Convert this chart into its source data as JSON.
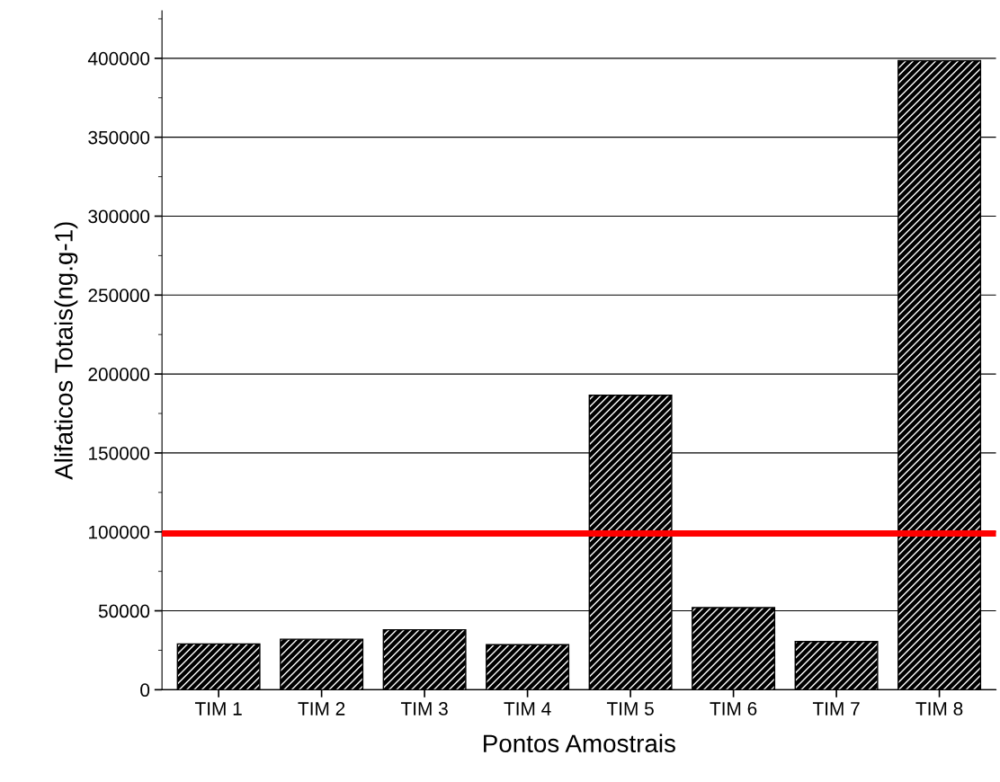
{
  "chart_data": {
    "type": "bar",
    "xlabel": "Pontos Amostrais",
    "ylabel": "Alifaticos Totais(ng.g-1)",
    "categories": [
      "TIM 1",
      "TIM 2",
      "TIM 3",
      "TIM 4",
      "TIM 5",
      "TIM 6",
      "TIM 7",
      "TIM 8"
    ],
    "values": [
      29000,
      32000,
      38000,
      28500,
      186500,
      52000,
      30500,
      398500
    ],
    "color": "#000000",
    "ylim": [
      0,
      430000
    ],
    "yticks": [
      0,
      50000,
      100000,
      150000,
      200000,
      250000,
      300000,
      350000,
      400000
    ],
    "grid": "y",
    "ref_lines": [
      {
        "axis": "y",
        "value": 99000,
        "color": "#ff0000"
      }
    ]
  }
}
